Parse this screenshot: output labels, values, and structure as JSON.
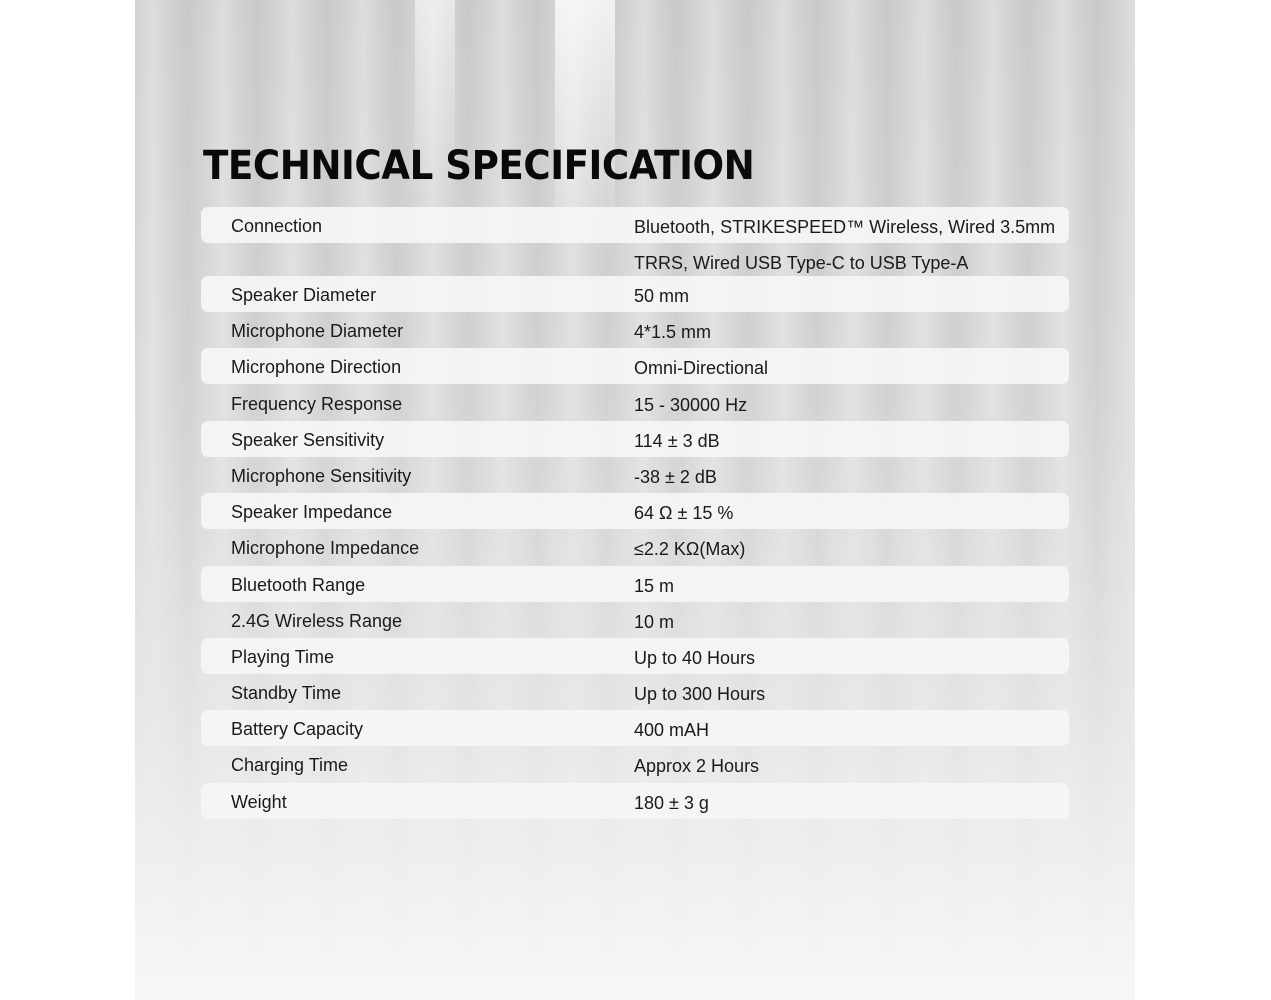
{
  "title": "TECHNICAL SPECIFICATION",
  "specs": [
    {
      "label": "Connection",
      "value": [
        "Bluetooth, STRIKESPEED™ Wireless, Wired 3.5mm",
        "TRRS, Wired USB Type-C to USB Type-A"
      ]
    },
    {
      "label": "Speaker Diameter",
      "value": [
        "50 mm"
      ]
    },
    {
      "label": "Microphone Diameter",
      "value": [
        "4*1.5 mm"
      ]
    },
    {
      "label": "Microphone Direction",
      "value": [
        "Omni-Directional"
      ]
    },
    {
      "label": "Frequency Response",
      "value": [
        "15 - 30000 Hz"
      ]
    },
    {
      "label": "Speaker Sensitivity",
      "value": [
        "114 ± 3 dB"
      ]
    },
    {
      "label": "Microphone Sensitivity",
      "value": [
        "-38 ± 2 dB"
      ]
    },
    {
      "label": "Speaker Impedance",
      "value": [
        "64 Ω ± 15 %"
      ]
    },
    {
      "label": "Microphone Impedance",
      "value": [
        "≤2.2 KΩ(Max)"
      ]
    },
    {
      "label": "Bluetooth Range",
      "value": [
        "15 m"
      ]
    },
    {
      "label": "2.4G Wireless Range",
      "value": [
        "10 m"
      ]
    },
    {
      "label": "Playing Time",
      "value": [
        "Up to 40 Hours"
      ]
    },
    {
      "label": "Standby Time",
      "value": [
        "Up to 300 Hours"
      ]
    },
    {
      "label": "Battery Capacity",
      "value": [
        "400 mAH"
      ]
    },
    {
      "label": "Charging Time",
      "value": [
        "Approx 2 Hours"
      ]
    },
    {
      "label": "Weight",
      "value": [
        "180 ± 3 g"
      ]
    }
  ]
}
